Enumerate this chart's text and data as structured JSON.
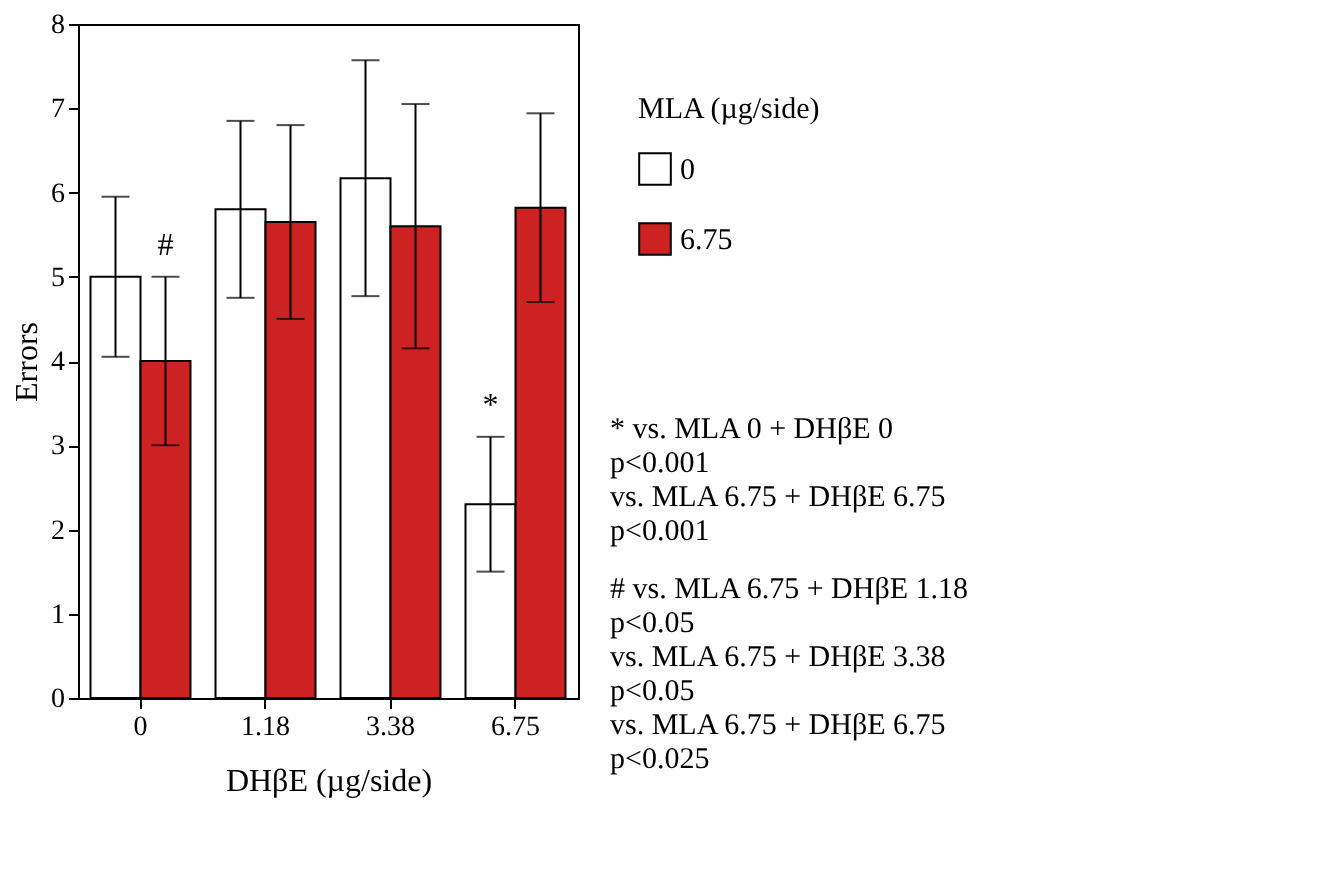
{
  "chart_data": {
    "type": "bar",
    "xlabel": "DHβE (µg/side)",
    "ylabel": "Errors",
    "legend_title": "MLA (µg/side)",
    "legend": "right",
    "grid": false,
    "categories": [
      "0",
      "1.18",
      "3.38",
      "6.75"
    ],
    "series": [
      {
        "name": "0",
        "color": "#ffffff",
        "values": [
          5.0,
          5.8,
          6.17,
          2.3
        ],
        "errors": [
          0.95,
          1.05,
          1.4,
          0.8
        ]
      },
      {
        "name": "6.75",
        "color": "#cc2222",
        "values": [
          4.0,
          5.65,
          5.6,
          5.82
        ],
        "errors": [
          1.0,
          1.15,
          1.45,
          1.12
        ]
      }
    ],
    "ylim": [
      0,
      8
    ],
    "yticks": [
      0,
      1,
      2,
      3,
      4,
      5,
      6,
      7,
      8
    ],
    "annotations": [
      {
        "text": "#",
        "x": "0",
        "y": 5.0
      },
      {
        "text": "*",
        "x": "6.75",
        "y": 3.1
      },
      "* vs. MLA 0 + DHβE 0\np<0.001\nvs. MLA 6.75 + DHβE 6.75\np<0.001",
      "# vs. MLA 6.75 + DHβE 1.18\np<0.05\nvs. MLA 6.75 + DHβE 3.38\np<0.05\nvs. MLA 6.75 + DHβE 6.75\np<0.025"
    ]
  }
}
